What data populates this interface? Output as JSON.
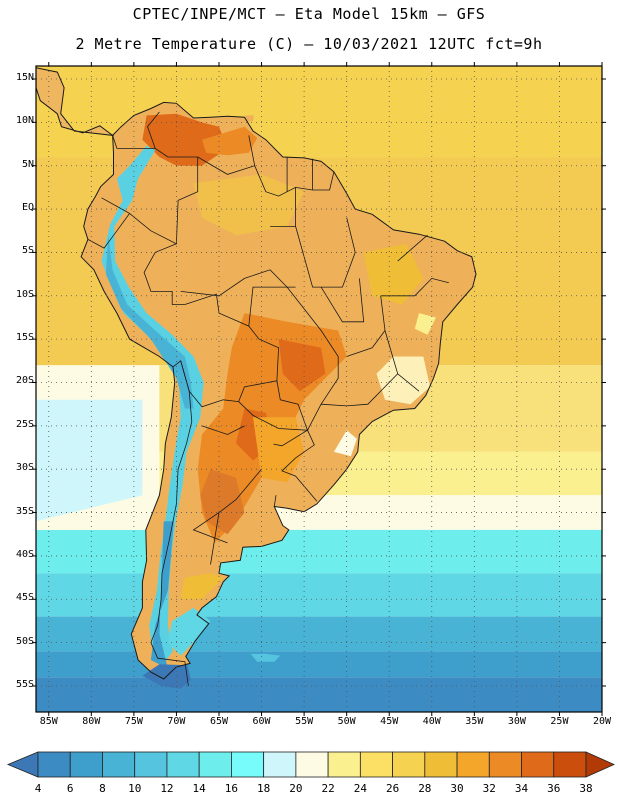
{
  "header": {
    "line1": "CPTEC/INPE/MCT –  Eta Model 15km – GFS",
    "line2": "2 Metre Temperature (C) – 10/03/2021 12UTC fct=9h"
  },
  "map": {
    "lat_labels": [
      "15N",
      "10N",
      "5N",
      "EQ",
      "5S",
      "10S",
      "15S",
      "20S",
      "25S",
      "30S",
      "35S",
      "40S",
      "45S",
      "50S",
      "55S"
    ],
    "lat_values": [
      15,
      10,
      5,
      0,
      -5,
      -10,
      -15,
      -20,
      -25,
      -30,
      -35,
      -40,
      -45,
      -50,
      -55
    ],
    "lon_labels": [
      "85W",
      "80W",
      "75W",
      "70W",
      "65W",
      "60W",
      "55W",
      "50W",
      "45W",
      "40W",
      "35W",
      "30W",
      "25W",
      "20W"
    ],
    "lon_values": [
      -85,
      -80,
      -75,
      -70,
      -65,
      -60,
      -55,
      -50,
      -45,
      -40,
      -35,
      -30,
      -25,
      -20
    ],
    "lat_range": [
      -58,
      16.5
    ],
    "lon_range": [
      -86.5,
      -20
    ],
    "ocean_color": "#f3cb52",
    "land_color": "#eeb15a",
    "hot_color": "#dc7a29",
    "cold_color": "#5ad1e2",
    "border_color": "#1a1a1a"
  },
  "colorbar": {
    "levels": [
      "4",
      "6",
      "8",
      "10",
      "12",
      "14",
      "16",
      "18",
      "20",
      "22",
      "24",
      "26",
      "28",
      "30",
      "32",
      "34",
      "36",
      "38"
    ],
    "colors": [
      "#3d78b6",
      "#3c8bc2",
      "#3f9fcc",
      "#48b3d5",
      "#55c4de",
      "#5fd7e4",
      "#6deeec",
      "#77fbfb",
      "#cff6fb",
      "#fdfbe3",
      "#fbf08f",
      "#fce065",
      "#f6d251",
      "#efbe36",
      "#f4a62a",
      "#ec8a25",
      "#df6a19",
      "#cc4e0d",
      "#b23a07"
    ]
  }
}
